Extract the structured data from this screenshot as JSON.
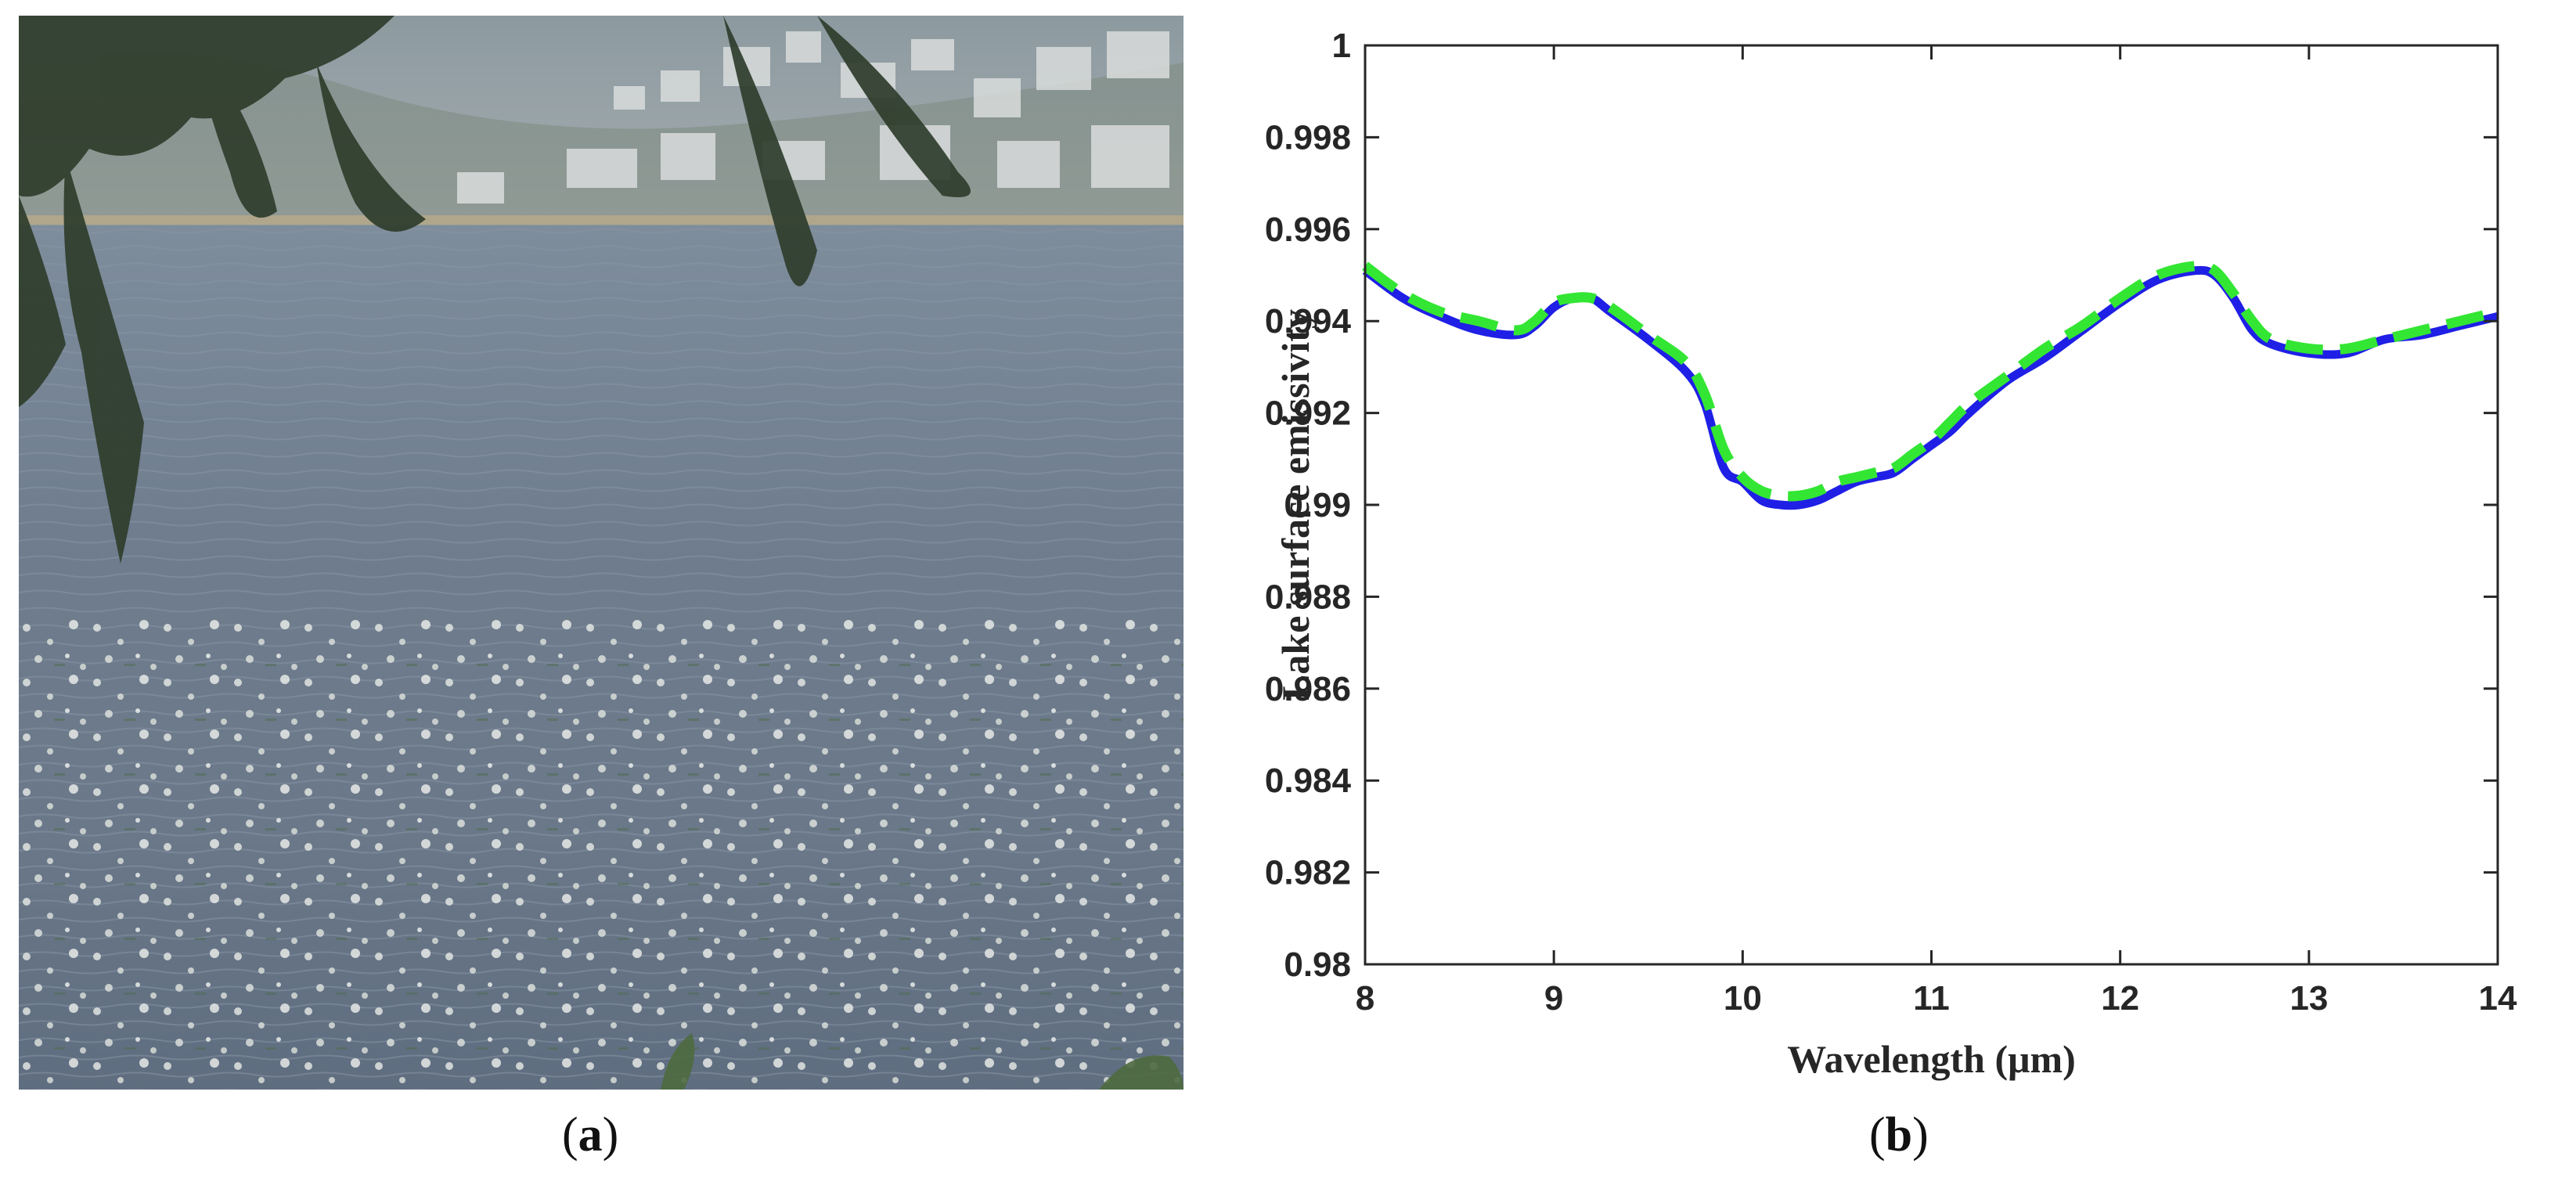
{
  "panels": {
    "a": {
      "label_open": "(",
      "label_letter": "a",
      "label_close": ")"
    },
    "b": {
      "label_open": "(",
      "label_letter": "b",
      "label_close": ")"
    }
  },
  "chart_data": {
    "type": "line",
    "title": "",
    "xlabel": "Wavelength (μm)",
    "ylabel": "Lake surface emissivity",
    "xlim": [
      8,
      14
    ],
    "ylim": [
      0.98,
      1
    ],
    "xticks": [
      "8",
      "9",
      "10",
      "11",
      "12",
      "13",
      "14"
    ],
    "yticks": [
      "0.98",
      "0.982",
      "0.984",
      "0.986",
      "0.988",
      "0.99",
      "0.992",
      "0.994",
      "0.996",
      "0.998",
      "1"
    ],
    "grid": false,
    "legend": "none",
    "series": [
      {
        "style": "solid",
        "color": "#1f1fe6",
        "x": [
          8.0,
          8.2,
          8.4,
          8.6,
          8.8,
          8.9,
          9.0,
          9.1,
          9.2,
          9.3,
          9.5,
          9.7,
          9.8,
          9.9,
          10.0,
          10.1,
          10.2,
          10.3,
          10.4,
          10.5,
          10.6,
          10.7,
          10.8,
          10.9,
          11.0,
          11.1,
          11.2,
          11.4,
          11.6,
          11.8,
          12.0,
          12.2,
          12.4,
          12.5,
          12.6,
          12.7,
          12.8,
          13.0,
          13.2,
          13.4,
          13.6,
          13.8,
          14.0
        ],
        "y": [
          0.9951,
          0.9945,
          0.9941,
          0.9938,
          0.9937,
          0.9939,
          0.9943,
          0.9945,
          0.9945,
          0.9942,
          0.9936,
          0.9929,
          0.9922,
          0.9908,
          0.9905,
          0.9901,
          0.99,
          0.99,
          0.9901,
          0.9903,
          0.9905,
          0.9906,
          0.9907,
          0.991,
          0.9913,
          0.9916,
          0.992,
          0.9927,
          0.9932,
          0.9938,
          0.9944,
          0.9949,
          0.9951,
          0.995,
          0.9945,
          0.9938,
          0.9935,
          0.9933,
          0.9933,
          0.9936,
          0.9937,
          0.9939,
          0.9941
        ]
      },
      {
        "style": "dashed",
        "color": "#33e633",
        "x": [
          8.0,
          8.2,
          8.4,
          8.6,
          8.8,
          8.9,
          9.0,
          9.1,
          9.2,
          9.3,
          9.5,
          9.7,
          9.8,
          9.9,
          10.0,
          10.1,
          10.2,
          10.3,
          10.4,
          10.5,
          10.6,
          10.7,
          10.8,
          10.9,
          11.0,
          11.1,
          11.2,
          11.4,
          11.6,
          11.8,
          12.0,
          12.2,
          12.4,
          12.5,
          12.6,
          12.7,
          12.8,
          13.0,
          13.2,
          13.4,
          13.6,
          13.8,
          14.0
        ],
        "y": [
          0.9952,
          0.9946,
          0.9942,
          0.994,
          0.9938,
          0.994,
          0.9944,
          0.9945,
          0.9945,
          0.9943,
          0.9937,
          0.9931,
          0.9924,
          0.9912,
          0.9906,
          0.9903,
          0.9902,
          0.9902,
          0.9903,
          0.9905,
          0.9906,
          0.9907,
          0.9908,
          0.9911,
          0.9914,
          0.9918,
          0.9922,
          0.9928,
          0.9934,
          0.9939,
          0.9945,
          0.995,
          0.9952,
          0.9951,
          0.9946,
          0.994,
          0.9936,
          0.9934,
          0.9934,
          0.9936,
          0.9938,
          0.994,
          0.9942
        ]
      }
    ]
  },
  "colors": {
    "axis": "#262626",
    "solid_line": "#1f1fe6",
    "dashed_line": "#33e633"
  }
}
